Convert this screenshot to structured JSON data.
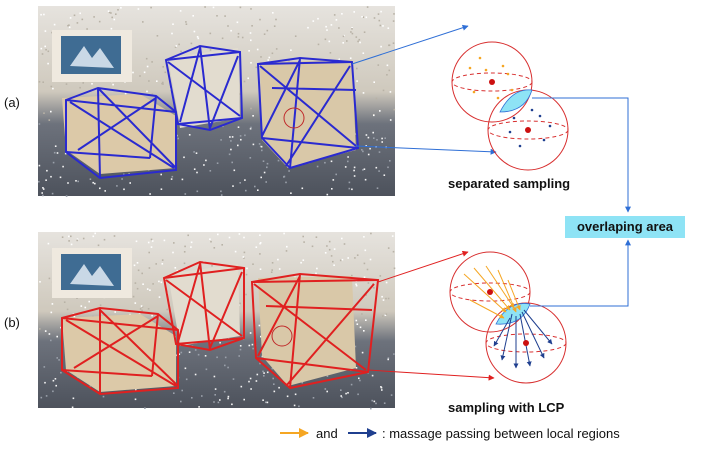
{
  "panel_a": {
    "label": "(a)",
    "caption": "separated sampling",
    "box_color": "#2a2ad0"
  },
  "panel_b": {
    "label": "(b)",
    "caption": "sampling with LCP",
    "box_color": "#e02020"
  },
  "overlap": {
    "label": "overlaping area",
    "fill": "#8ee3f5",
    "arrow_color": "#2f6fd6"
  },
  "legend": {
    "and_text": "and",
    "description": ": massage passing between local regions",
    "orange": "#f5a623",
    "dark_blue": "#1f3f8f"
  },
  "sphere_color": "#d83030"
}
